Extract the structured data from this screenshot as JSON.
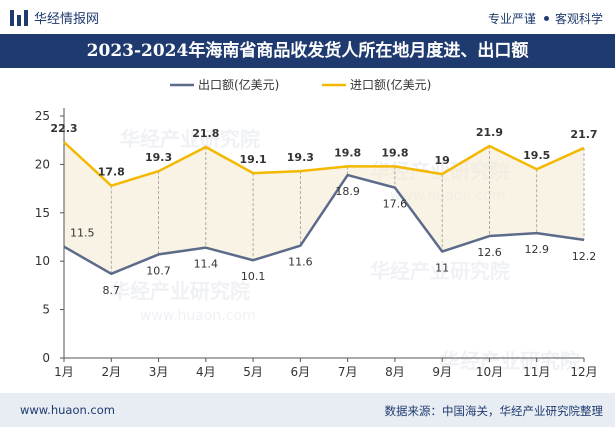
{
  "header": {
    "brand": "华经情报网",
    "tagline_left": "专业严谨",
    "tagline_right": "客观科学"
  },
  "chart_data": {
    "type": "line",
    "title": "2023-2024年海南省商品收发货人所在地月度进、出口额",
    "categories": [
      "1月",
      "2月",
      "3月",
      "4月",
      "5月",
      "6月",
      "7月",
      "8月",
      "9月",
      "10月",
      "11月",
      "12月"
    ],
    "series": [
      {
        "name": "出口额(亿美元)",
        "color": "#5c6b8a",
        "values": [
          11.5,
          8.7,
          10.7,
          11.4,
          10.1,
          11.6,
          18.9,
          17.6,
          11,
          12.6,
          12.9,
          12.2
        ]
      },
      {
        "name": "进口额(亿美元)",
        "color": "#f5b800",
        "values": [
          22.3,
          17.8,
          19.3,
          21.8,
          19.1,
          19.3,
          19.8,
          19.8,
          19,
          21.9,
          19.5,
          21.7
        ]
      }
    ],
    "y_ticks": [
      0,
      5,
      10,
      15,
      20,
      25
    ],
    "ylim": [
      0,
      25
    ],
    "legend_position": "top-center",
    "grid": false
  },
  "footer": {
    "site": "www.huaon.com",
    "source": "数据来源：中国海关，华经产业研究院整理"
  },
  "watermarks": [
    "华经产业研究院",
    "www.huaon.com"
  ]
}
